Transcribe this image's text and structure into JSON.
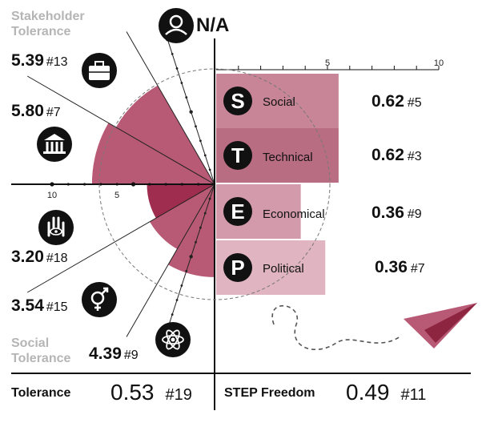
{
  "colors": {
    "tolerance_dark": "#9e2d50",
    "tolerance_light": "#b85a75",
    "social": "#c88597",
    "technical": "#b86d82",
    "economical": "#d29aab",
    "political": "#e0b4c1",
    "plane": "#b85a75",
    "plane_dark": "#8e2540",
    "icon_bg": "#111111"
  },
  "titles": {
    "stakeholder": [
      "Stakeholder",
      "Tolerance"
    ],
    "social": [
      "Social",
      "Tolerance"
    ]
  },
  "radial_metrics": [
    {
      "id": "business",
      "value": "5.39",
      "rank": "#13",
      "icon": "briefcase-icon"
    },
    {
      "id": "government",
      "value": "5.80",
      "rank": "#7",
      "icon": "government-building-icon"
    },
    {
      "id": "activism",
      "value": "3.20",
      "rank": "#18",
      "icon": "hand-eye-icon"
    },
    {
      "id": "gender",
      "value": "3.54",
      "rank": "#15",
      "icon": "gender-icon"
    },
    {
      "id": "science",
      "value": "4.39",
      "rank": "#9",
      "icon": "atom-icon"
    }
  ],
  "na_label": "N/A",
  "na_icon": "people-group-icon",
  "bars": [
    {
      "letter": "S",
      "label": "Social",
      "score": "0.62",
      "rank": "#5"
    },
    {
      "letter": "T",
      "label": "Technical",
      "score": "0.62",
      "rank": "#3"
    },
    {
      "letter": "E",
      "label": "Economical",
      "score": "0.36",
      "rank": "#9"
    },
    {
      "letter": "P",
      "label": "Political",
      "score": "0.36",
      "rank": "#7"
    }
  ],
  "bottom": {
    "tolerance_label": "Tolerance",
    "tolerance_value": "0.53",
    "tolerance_rank": "#19",
    "step_label": "STEP Freedom",
    "step_value": "0.49",
    "step_rank": "#11"
  },
  "chart_data": [
    {
      "type": "bar",
      "categories": [
        "Social",
        "Technical",
        "Economical",
        "Political"
      ],
      "values": [
        5.5,
        5.5,
        3.8,
        4.9
      ],
      "xlim": [
        0,
        10
      ],
      "tick_labels": [
        "5",
        "10"
      ]
    },
    {
      "type": "pie",
      "categories": [
        "N/A",
        "Business",
        "Government",
        "Activism",
        "Gender",
        "Science"
      ],
      "values": [
        0,
        5.39,
        5.8,
        3.2,
        3.54,
        4.39
      ],
      "rlim": [
        0,
        10
      ],
      "tick_labels": [
        "10",
        "5"
      ]
    }
  ]
}
